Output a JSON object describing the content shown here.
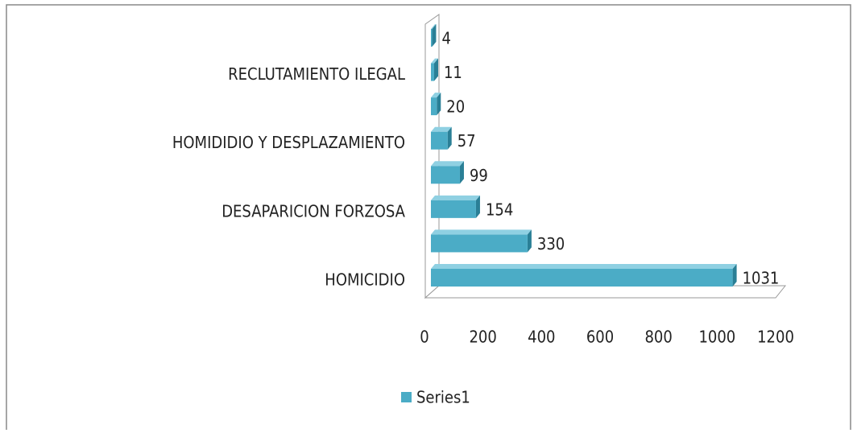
{
  "chart_data": {
    "type": "bar",
    "orientation": "horizontal",
    "categories": [
      "HOMICIDIO",
      null,
      "DESAPARICION FORZOSA",
      null,
      "HOMIDIDIO Y DESPLAZAMIENTO",
      null,
      "RECLUTAMIENTO ILEGAL",
      null
    ],
    "series": [
      {
        "name": "Series1",
        "color": "#4bacc6",
        "values": [
          1031,
          330,
          154,
          99,
          57,
          20,
          11,
          4
        ]
      }
    ],
    "xlim": [
      0,
      1200
    ],
    "xticks": [
      0,
      200,
      400,
      600,
      800,
      1000,
      1200
    ],
    "legend": "bottom",
    "data_labels": true
  }
}
